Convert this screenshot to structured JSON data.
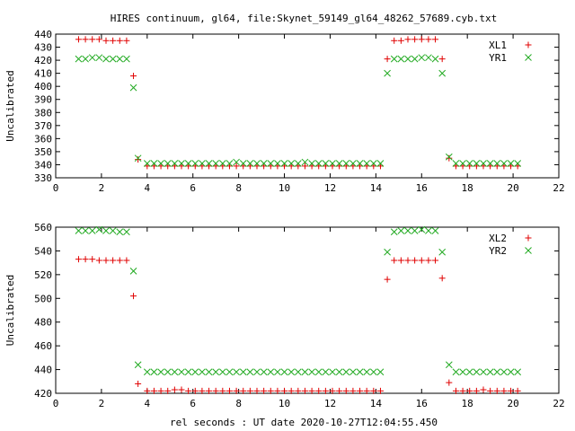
{
  "title": "HIRES continuum, gl64, file:Skynet_59149_gl64_48262_57689.cyb.txt",
  "xlabel": "rel seconds : UT date 2020-10-27T12:04:55.450",
  "colors": {
    "red": "#e00000",
    "green": "#22aa22",
    "axis": "#000000"
  },
  "chart_data": [
    {
      "type": "scatter",
      "ylabel": "Uncalibrated",
      "xlim": [
        0,
        22
      ],
      "ylim": [
        330,
        440
      ],
      "xticks": [
        "0",
        "2",
        "4",
        "6",
        "8",
        "10",
        "12",
        "14",
        "16",
        "18",
        "20",
        "22"
      ],
      "yticks": [
        "330",
        "340",
        "350",
        "360",
        "370",
        "380",
        "390",
        "400",
        "410",
        "420",
        "430",
        "440"
      ],
      "legend": "top-right",
      "series": [
        {
          "name": "XL1",
          "marker": "plus",
          "color": "red",
          "points": [
            [
              1.0,
              436
            ],
            [
              1.3,
              436
            ],
            [
              1.6,
              436
            ],
            [
              1.9,
              436
            ],
            [
              2.2,
              435
            ],
            [
              2.5,
              435
            ],
            [
              2.8,
              435
            ],
            [
              3.1,
              435
            ],
            [
              3.4,
              408
            ],
            [
              3.6,
              344
            ],
            [
              4.0,
              339
            ],
            [
              4.3,
              339
            ],
            [
              4.6,
              339
            ],
            [
              4.9,
              339
            ],
            [
              5.2,
              339
            ],
            [
              5.5,
              339
            ],
            [
              5.8,
              339
            ],
            [
              6.1,
              339
            ],
            [
              6.4,
              339
            ],
            [
              6.7,
              339
            ],
            [
              7.0,
              339
            ],
            [
              7.3,
              339
            ],
            [
              7.6,
              339
            ],
            [
              7.9,
              339
            ],
            [
              8.2,
              339
            ],
            [
              8.5,
              339
            ],
            [
              8.8,
              339
            ],
            [
              9.1,
              339
            ],
            [
              9.4,
              339
            ],
            [
              9.7,
              339
            ],
            [
              10.0,
              339
            ],
            [
              10.3,
              339
            ],
            [
              10.6,
              339
            ],
            [
              10.9,
              339
            ],
            [
              11.2,
              339
            ],
            [
              11.5,
              339
            ],
            [
              11.8,
              339
            ],
            [
              12.1,
              339
            ],
            [
              12.4,
              339
            ],
            [
              12.7,
              339
            ],
            [
              13.0,
              339
            ],
            [
              13.3,
              339
            ],
            [
              13.6,
              339
            ],
            [
              13.9,
              339
            ],
            [
              14.2,
              339
            ],
            [
              14.5,
              421
            ],
            [
              14.8,
              435
            ],
            [
              15.1,
              435
            ],
            [
              15.4,
              436
            ],
            [
              15.7,
              436
            ],
            [
              16.0,
              436
            ],
            [
              16.3,
              436
            ],
            [
              16.6,
              436
            ],
            [
              16.9,
              421
            ],
            [
              17.2,
              345
            ],
            [
              17.5,
              339
            ],
            [
              17.8,
              339
            ],
            [
              18.1,
              339
            ],
            [
              18.4,
              339
            ],
            [
              18.7,
              339
            ],
            [
              19.0,
              339
            ],
            [
              19.3,
              339
            ],
            [
              19.6,
              339
            ],
            [
              19.9,
              339
            ],
            [
              20.2,
              339
            ]
          ]
        },
        {
          "name": "YR1",
          "marker": "cross",
          "color": "green",
          "points": [
            [
              1.0,
              421
            ],
            [
              1.3,
              421
            ],
            [
              1.6,
              422
            ],
            [
              1.9,
              422
            ],
            [
              2.2,
              421
            ],
            [
              2.5,
              421
            ],
            [
              2.8,
              421
            ],
            [
              3.1,
              421
            ],
            [
              3.4,
              399
            ],
            [
              3.6,
              345
            ],
            [
              4.0,
              341
            ],
            [
              4.3,
              341
            ],
            [
              4.6,
              341
            ],
            [
              4.9,
              341
            ],
            [
              5.2,
              341
            ],
            [
              5.5,
              341
            ],
            [
              5.8,
              341
            ],
            [
              6.1,
              341
            ],
            [
              6.4,
              341
            ],
            [
              6.7,
              341
            ],
            [
              7.0,
              341
            ],
            [
              7.3,
              341
            ],
            [
              7.6,
              341
            ],
            [
              7.9,
              342
            ],
            [
              8.2,
              341
            ],
            [
              8.5,
              341
            ],
            [
              8.8,
              341
            ],
            [
              9.1,
              341
            ],
            [
              9.4,
              341
            ],
            [
              9.7,
              341
            ],
            [
              10.0,
              341
            ],
            [
              10.3,
              341
            ],
            [
              10.6,
              341
            ],
            [
              10.9,
              342
            ],
            [
              11.2,
              341
            ],
            [
              11.5,
              341
            ],
            [
              11.8,
              341
            ],
            [
              12.1,
              341
            ],
            [
              12.4,
              341
            ],
            [
              12.7,
              341
            ],
            [
              13.0,
              341
            ],
            [
              13.3,
              341
            ],
            [
              13.6,
              341
            ],
            [
              13.9,
              341
            ],
            [
              14.2,
              341
            ],
            [
              14.5,
              410
            ],
            [
              14.8,
              421
            ],
            [
              15.1,
              421
            ],
            [
              15.4,
              421
            ],
            [
              15.7,
              421
            ],
            [
              16.0,
              422
            ],
            [
              16.3,
              422
            ],
            [
              16.6,
              421
            ],
            [
              16.9,
              410
            ],
            [
              17.2,
              346
            ],
            [
              17.5,
              341
            ],
            [
              17.8,
              341
            ],
            [
              18.1,
              341
            ],
            [
              18.4,
              341
            ],
            [
              18.7,
              341
            ],
            [
              19.0,
              341
            ],
            [
              19.3,
              341
            ],
            [
              19.6,
              341
            ],
            [
              19.9,
              341
            ],
            [
              20.2,
              341
            ]
          ]
        }
      ]
    },
    {
      "type": "scatter",
      "ylabel": "Uncalibrated",
      "xlim": [
        0,
        22
      ],
      "ylim": [
        420,
        560
      ],
      "xticks": [
        "0",
        "2",
        "4",
        "6",
        "8",
        "10",
        "12",
        "14",
        "16",
        "18",
        "20",
        "22"
      ],
      "yticks": [
        "420",
        "440",
        "460",
        "480",
        "500",
        "520",
        "540",
        "560"
      ],
      "legend": "top-right",
      "series": [
        {
          "name": "XL2",
          "marker": "plus",
          "color": "red",
          "points": [
            [
              1.0,
              533
            ],
            [
              1.3,
              533
            ],
            [
              1.6,
              533
            ],
            [
              1.9,
              532
            ],
            [
              2.2,
              532
            ],
            [
              2.5,
              532
            ],
            [
              2.8,
              532
            ],
            [
              3.1,
              532
            ],
            [
              3.4,
              502
            ],
            [
              3.6,
              428
            ],
            [
              4.0,
              422
            ],
            [
              4.3,
              422
            ],
            [
              4.6,
              422
            ],
            [
              4.9,
              422
            ],
            [
              5.2,
              423
            ],
            [
              5.5,
              423
            ],
            [
              5.8,
              422
            ],
            [
              6.1,
              422
            ],
            [
              6.4,
              422
            ],
            [
              6.7,
              422
            ],
            [
              7.0,
              422
            ],
            [
              7.3,
              422
            ],
            [
              7.6,
              422
            ],
            [
              7.9,
              422
            ],
            [
              8.2,
              422
            ],
            [
              8.5,
              422
            ],
            [
              8.8,
              422
            ],
            [
              9.1,
              422
            ],
            [
              9.4,
              422
            ],
            [
              9.7,
              422
            ],
            [
              10.0,
              422
            ],
            [
              10.3,
              422
            ],
            [
              10.6,
              422
            ],
            [
              10.9,
              422
            ],
            [
              11.2,
              422
            ],
            [
              11.5,
              422
            ],
            [
              11.8,
              422
            ],
            [
              12.1,
              422
            ],
            [
              12.4,
              422
            ],
            [
              12.7,
              422
            ],
            [
              13.0,
              422
            ],
            [
              13.3,
              422
            ],
            [
              13.6,
              422
            ],
            [
              13.9,
              422
            ],
            [
              14.2,
              422
            ],
            [
              14.5,
              516
            ],
            [
              14.8,
              532
            ],
            [
              15.1,
              532
            ],
            [
              15.4,
              532
            ],
            [
              15.7,
              532
            ],
            [
              16.0,
              532
            ],
            [
              16.3,
              532
            ],
            [
              16.6,
              532
            ],
            [
              16.9,
              517
            ],
            [
              17.2,
              429
            ],
            [
              17.5,
              422
            ],
            [
              17.8,
              422
            ],
            [
              18.1,
              422
            ],
            [
              18.4,
              422
            ],
            [
              18.7,
              423
            ],
            [
              19.0,
              422
            ],
            [
              19.3,
              422
            ],
            [
              19.6,
              422
            ],
            [
              19.9,
              422
            ],
            [
              20.2,
              422
            ]
          ]
        },
        {
          "name": "YR2",
          "marker": "cross",
          "color": "green",
          "points": [
            [
              1.0,
              557
            ],
            [
              1.3,
              557
            ],
            [
              1.6,
              557
            ],
            [
              1.9,
              558
            ],
            [
              2.2,
              557
            ],
            [
              2.5,
              557
            ],
            [
              2.8,
              556
            ],
            [
              3.1,
              556
            ],
            [
              3.4,
              523
            ],
            [
              3.6,
              444
            ],
            [
              4.0,
              438
            ],
            [
              4.3,
              438
            ],
            [
              4.6,
              438
            ],
            [
              4.9,
              438
            ],
            [
              5.2,
              438
            ],
            [
              5.5,
              438
            ],
            [
              5.8,
              438
            ],
            [
              6.1,
              438
            ],
            [
              6.4,
              438
            ],
            [
              6.7,
              438
            ],
            [
              7.0,
              438
            ],
            [
              7.3,
              438
            ],
            [
              7.6,
              438
            ],
            [
              7.9,
              438
            ],
            [
              8.2,
              438
            ],
            [
              8.5,
              438
            ],
            [
              8.8,
              438
            ],
            [
              9.1,
              438
            ],
            [
              9.4,
              438
            ],
            [
              9.7,
              438
            ],
            [
              10.0,
              438
            ],
            [
              10.3,
              438
            ],
            [
              10.6,
              438
            ],
            [
              10.9,
              438
            ],
            [
              11.2,
              438
            ],
            [
              11.5,
              438
            ],
            [
              11.8,
              438
            ],
            [
              12.1,
              438
            ],
            [
              12.4,
              438
            ],
            [
              12.7,
              438
            ],
            [
              13.0,
              438
            ],
            [
              13.3,
              438
            ],
            [
              13.6,
              438
            ],
            [
              13.9,
              438
            ],
            [
              14.2,
              438
            ],
            [
              14.5,
              539
            ],
            [
              14.8,
              556
            ],
            [
              15.1,
              557
            ],
            [
              15.4,
              557
            ],
            [
              15.7,
              557
            ],
            [
              16.0,
              558
            ],
            [
              16.3,
              557
            ],
            [
              16.6,
              557
            ],
            [
              16.9,
              539
            ],
            [
              17.2,
              444
            ],
            [
              17.5,
              438
            ],
            [
              17.8,
              438
            ],
            [
              18.1,
              438
            ],
            [
              18.4,
              438
            ],
            [
              18.7,
              438
            ],
            [
              19.0,
              438
            ],
            [
              19.3,
              438
            ],
            [
              19.6,
              438
            ],
            [
              19.9,
              438
            ],
            [
              20.2,
              438
            ]
          ]
        }
      ]
    }
  ]
}
